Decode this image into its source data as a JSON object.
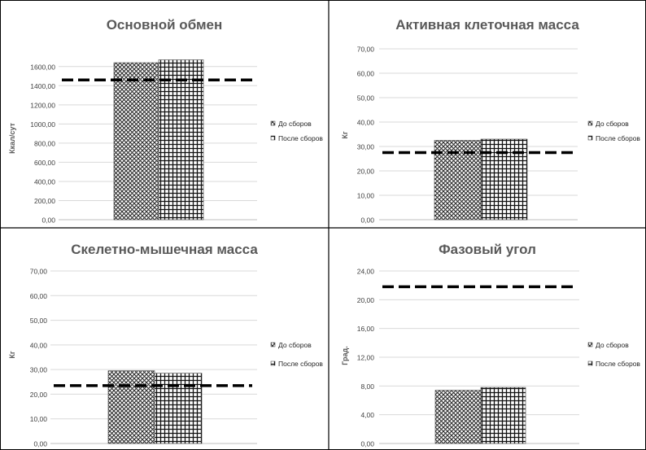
{
  "legend": {
    "before": "До сборов",
    "after": "После сборов"
  },
  "chart_data": [
    {
      "type": "bar",
      "title": "Основной обмен",
      "ylabel": "Ккал/сут",
      "ylim": [
        0,
        1700
      ],
      "ticks": [
        "0,00",
        "200,00",
        "400,00",
        "600,00",
        "800,00",
        "1000,00",
        "1200,00",
        "1400,00",
        "1600,00"
      ],
      "tick_values": [
        0,
        200,
        400,
        600,
        800,
        1000,
        1200,
        1400,
        1600
      ],
      "series": [
        {
          "name": "До сборов",
          "values": [
            1640
          ]
        },
        {
          "name": "После сборов",
          "values": [
            1670
          ]
        }
      ],
      "reference_line": 1460,
      "grid": true,
      "legend_position": "right"
    },
    {
      "type": "bar",
      "title": "Активная клеточная масса",
      "ylabel": "Кг",
      "ylim": [
        0,
        70
      ],
      "ticks": [
        "0,00",
        "10,00",
        "20,00",
        "30,00",
        "40,00",
        "50,00",
        "60,00",
        "70,00"
      ],
      "tick_values": [
        0,
        10,
        20,
        30,
        40,
        50,
        60,
        70
      ],
      "series": [
        {
          "name": "До сборов",
          "values": [
            32.5
          ]
        },
        {
          "name": "После сборов",
          "values": [
            33
          ]
        }
      ],
      "reference_line": 27.5,
      "grid": true,
      "legend_position": "right"
    },
    {
      "type": "bar",
      "title": "Скелетно-мышечная масса",
      "ylabel": "Кг",
      "ylim": [
        0,
        70
      ],
      "ticks": [
        "0,00",
        "10,00",
        "20,00",
        "30,00",
        "40,00",
        "50,00",
        "60,00",
        "70,00"
      ],
      "tick_values": [
        0,
        10,
        20,
        30,
        40,
        50,
        60,
        70
      ],
      "series": [
        {
          "name": "До сборов",
          "values": [
            29.5
          ]
        },
        {
          "name": "После сборов",
          "values": [
            28.5
          ]
        }
      ],
      "reference_line": 23.5,
      "grid": true,
      "legend_position": "right"
    },
    {
      "type": "bar",
      "title": "Фазовый угол",
      "ylabel": "Град.",
      "ylim": [
        0,
        24
      ],
      "ticks": [
        "0,00",
        "4,00",
        "8,00",
        "12,00",
        "16,00",
        "20,00",
        "24,00"
      ],
      "tick_values": [
        0,
        4,
        8,
        12,
        16,
        20,
        24
      ],
      "series": [
        {
          "name": "До сборов",
          "values": [
            7.4
          ]
        },
        {
          "name": "После сборов",
          "values": [
            7.8
          ]
        }
      ],
      "reference_line": 21.8,
      "grid": true,
      "legend_position": "right"
    }
  ]
}
